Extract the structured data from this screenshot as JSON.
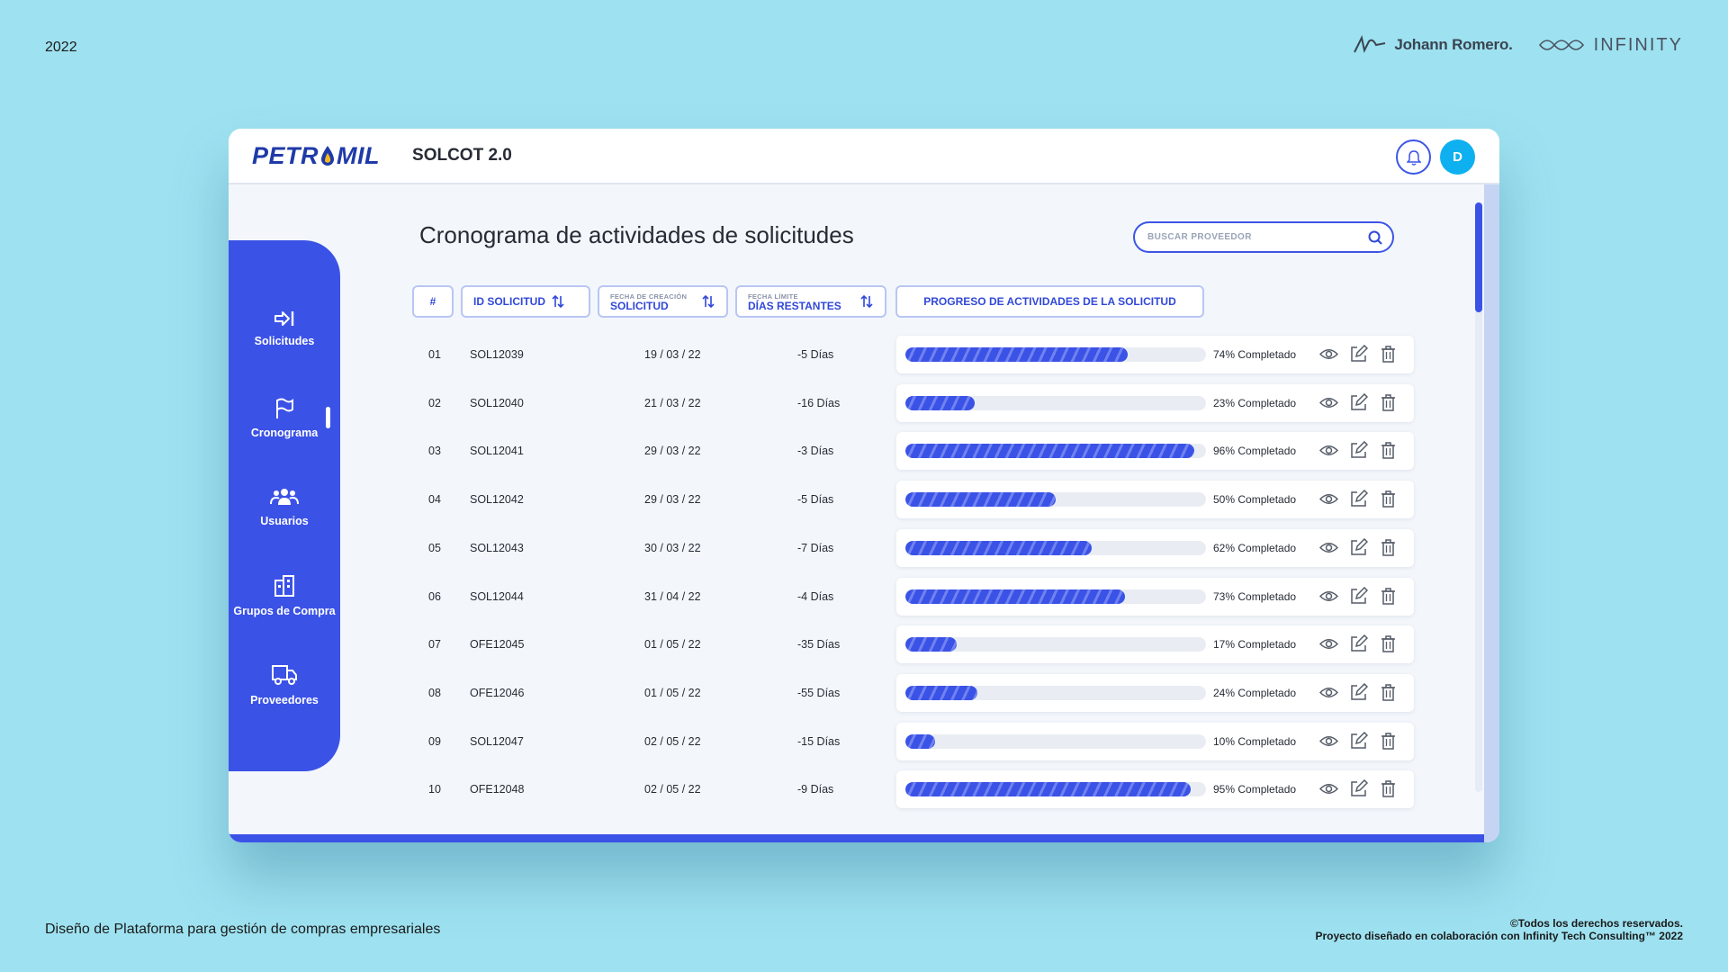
{
  "page": {
    "year": "2022",
    "brand_left": "Johann Romero.",
    "brand_right": "INFINITY",
    "footer_left": "Diseño de Plataforma para gestión de compras empresariales",
    "footer_right_1": "©Todos los derechos reservados.",
    "footer_right_2": "Proyecto diseñado en colaboración con Infinity Tech Consulting™ 2022"
  },
  "app": {
    "logo_left": "PETR",
    "logo_right": "MIL",
    "name": "SOLCOT 2.0",
    "avatar_initial": "D",
    "accent": "#3b52e6"
  },
  "sidebar": {
    "items": [
      {
        "label": "Solicitudes",
        "icon": "arrow-right-to-bracket-icon"
      },
      {
        "label": "Cronograma",
        "icon": "flag-icon",
        "active": true
      },
      {
        "label": "Usuarios",
        "icon": "users-icon"
      },
      {
        "label": "Grupos de Compra",
        "icon": "buildings-icon"
      },
      {
        "label": "Proveedores",
        "icon": "truck-icon"
      }
    ]
  },
  "main": {
    "title": "Cronograma de actividades de solicitudes",
    "search_placeholder": "BUSCAR PROVEEDOR",
    "headers": {
      "num": "#",
      "id": "ID SOLICITUD",
      "created_small": "FECHA DE CREACIÓN",
      "created": "SOLICITUD",
      "deadline_small": "FECHA LÍMITE",
      "deadline": "DÍAS RESTANTES",
      "progress": "PROGRESO DE ACTIVIDADES DE LA SOLICITUD"
    },
    "rows": [
      {
        "num": "01",
        "id": "SOL12039",
        "date": "19 / 03 / 22",
        "days": "-5 Días",
        "pct": 74,
        "pct_label": "74% Completado"
      },
      {
        "num": "02",
        "id": "SOL12040",
        "date": "21 / 03 / 22",
        "days": "-16 Días",
        "pct": 23,
        "pct_label": "23% Completado"
      },
      {
        "num": "03",
        "id": "SOL12041",
        "date": "29 / 03 / 22",
        "days": "-3 Días",
        "pct": 96,
        "pct_label": "96% Completado"
      },
      {
        "num": "04",
        "id": "SOL12042",
        "date": "29 / 03 / 22",
        "days": "-5 Días",
        "pct": 50,
        "pct_label": "50% Completado"
      },
      {
        "num": "05",
        "id": "SOL12043",
        "date": "30 / 03 / 22",
        "days": "-7 Días",
        "pct": 62,
        "pct_label": "62% Completado"
      },
      {
        "num": "06",
        "id": "SOL12044",
        "date": "31 / 04 / 22",
        "days": "-4 Días",
        "pct": 73,
        "pct_label": "73% Completado"
      },
      {
        "num": "07",
        "id": "OFE12045",
        "date": "01 / 05 / 22",
        "days": "-35 Días",
        "pct": 17,
        "pct_label": "17% Completado"
      },
      {
        "num": "08",
        "id": "OFE12046",
        "date": "01 / 05 / 22",
        "days": "-55 Días",
        "pct": 24,
        "pct_label": "24% Completado"
      },
      {
        "num": "09",
        "id": "SOL12047",
        "date": "02 / 05 / 22",
        "days": "-15 Días",
        "pct": 10,
        "pct_label": "10% Completado"
      },
      {
        "num": "10",
        "id": "OFE12048",
        "date": "02 / 05 / 22",
        "days": "-9 Días",
        "pct": 95,
        "pct_label": "95% Completado"
      }
    ]
  }
}
